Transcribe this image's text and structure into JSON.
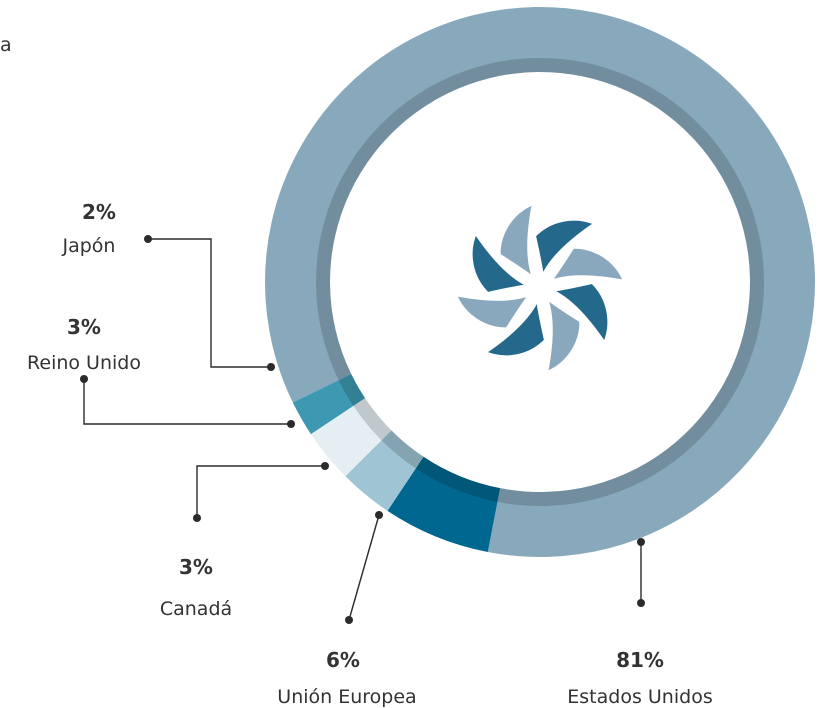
{
  "corner_text": "a",
  "chart_data": {
    "type": "pie",
    "style": "donut",
    "unit": "%",
    "slices": [
      {
        "label": "Estados Unidos",
        "value": 81,
        "value_label": "81%",
        "color": "#88a9bc"
      },
      {
        "label": "Unión Europea",
        "value": 6,
        "value_label": "6%",
        "color": "#006890"
      },
      {
        "label": "Canadá",
        "value": 3,
        "value_label": "3%",
        "color": "#9fc4d4"
      },
      {
        "label": "Reino Unido",
        "value": 3,
        "value_label": "3%",
        "color": "#e5eff3"
      },
      {
        "label": "Japón",
        "value": 2,
        "value_label": "2%",
        "color": "#3d98b1"
      }
    ],
    "center_logo": "spiral-pinwheel-logo",
    "logo_colors": [
      "#24698b",
      "#8aa8bd"
    ]
  }
}
